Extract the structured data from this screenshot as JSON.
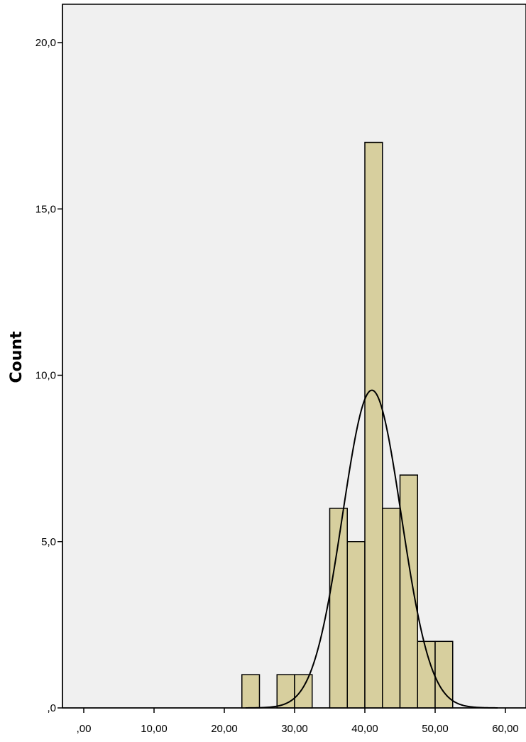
{
  "chart_data": {
    "type": "bar",
    "subtype": "histogram",
    "title": "",
    "xlabel": "",
    "ylabel": "Count",
    "xlim": [
      -3,
      61
    ],
    "ylim": [
      0,
      21
    ],
    "x_ticks": [
      0,
      10,
      20,
      30,
      40,
      50,
      60
    ],
    "x_tick_labels": [
      ",00",
      "10,00",
      "20,00",
      "30,00",
      "40,00",
      "50,00",
      "60,00"
    ],
    "y_ticks": [
      0,
      5,
      10,
      15,
      20
    ],
    "y_tick_labels": [
      ",0",
      "5,0",
      "10,0",
      "15,0",
      "20,0"
    ],
    "grid": false,
    "legend": "none",
    "bins": [
      {
        "start": 22.5,
        "end": 25.0,
        "count": 1
      },
      {
        "start": 27.5,
        "end": 30.0,
        "count": 1
      },
      {
        "start": 30.0,
        "end": 32.5,
        "count": 1
      },
      {
        "start": 35.0,
        "end": 37.5,
        "count": 6
      },
      {
        "start": 37.5,
        "end": 40.0,
        "count": 5
      },
      {
        "start": 40.0,
        "end": 42.5,
        "count": 17
      },
      {
        "start": 42.5,
        "end": 45.0,
        "count": 6
      },
      {
        "start": 45.0,
        "end": 47.5,
        "count": 7
      },
      {
        "start": 47.5,
        "end": 50.0,
        "count": 2
      },
      {
        "start": 50.0,
        "end": 52.5,
        "count": 2
      }
    ],
    "normal_curve": {
      "mean": 41.0,
      "std_dev": 4.18,
      "peak": 9.55
    },
    "colors": {
      "bar_fill": "#d7cf9e",
      "bar_stroke": "#000000",
      "plot_background": "#f0f0f0",
      "curve": "#000000"
    }
  }
}
